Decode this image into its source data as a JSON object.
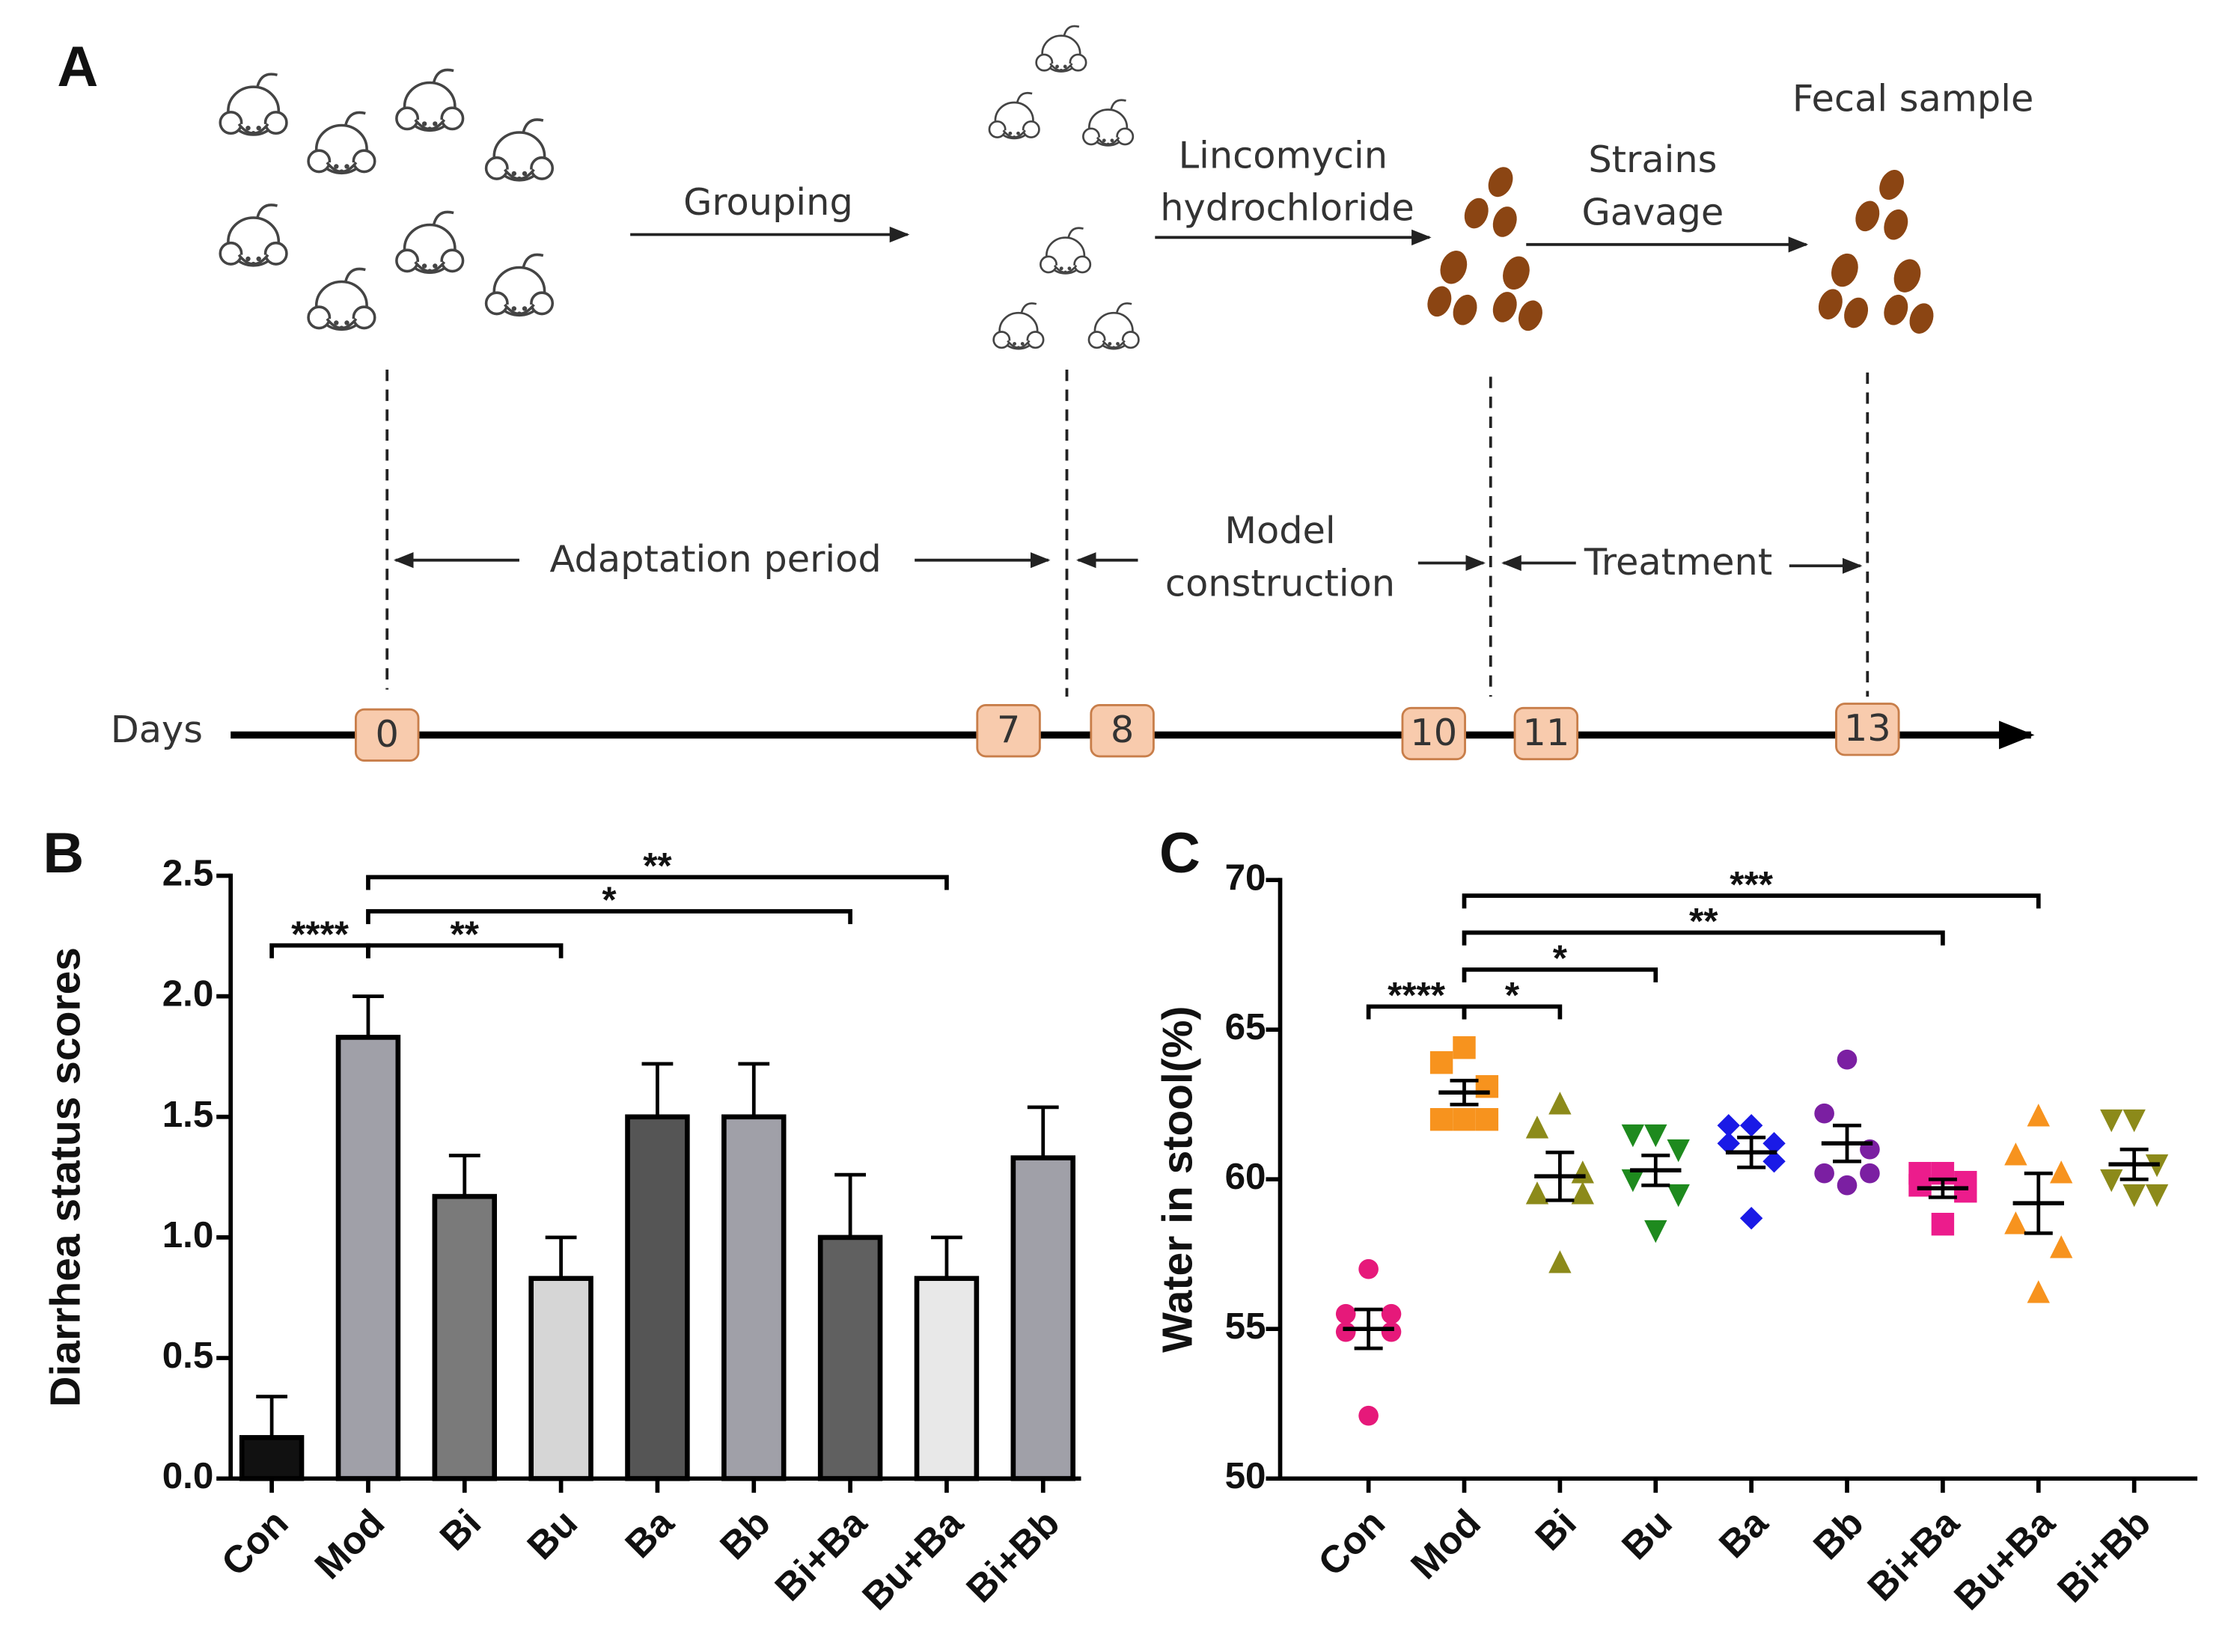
{
  "panel_a": {
    "label": "A",
    "grouping": "Grouping",
    "lincomycin": [
      "Lincomycin",
      "hydrochloride"
    ],
    "gavage": [
      "Strains",
      "Gavage"
    ],
    "fecal": "Fecal sample",
    "periods": [
      [
        "Adaptation period"
      ],
      [
        "Model",
        "construction"
      ],
      [
        "Treatment"
      ]
    ],
    "days_label": "Days",
    "days": [
      0,
      7,
      8,
      10,
      11,
      13
    ]
  },
  "chart_data": [
    {
      "type": "bar",
      "label": "B",
      "y_label": "Diarrhea status scores",
      "categories": [
        "Con",
        "Mod",
        "Bi",
        "Bu",
        "Ba",
        "Bb",
        "Bi+Ba",
        "Bu+Ba",
        "Bi+Bb"
      ],
      "values": [
        0.17,
        1.83,
        1.17,
        0.83,
        1.5,
        1.5,
        1.0,
        0.83,
        1.33
      ],
      "errors": [
        0.17,
        0.17,
        0.17,
        0.17,
        0.22,
        0.22,
        0.26,
        0.17,
        0.21
      ],
      "colors": [
        "#111111",
        "#a0a0a8",
        "#7a7a7a",
        "#d6d6d6",
        "#555555",
        "#a0a0a8",
        "#606060",
        "#e8e8e8",
        "#a0a0a8"
      ],
      "ylim": [
        0,
        2.5
      ],
      "yticks": [
        {
          "value": 0,
          "label": "0.0"
        },
        {
          "value": 0.5,
          "label": "0.5"
        },
        {
          "value": 1,
          "label": "1.0"
        },
        {
          "value": 1.5,
          "label": "1.5"
        },
        {
          "value": 2,
          "label": "2.0"
        },
        {
          "value": 2.5,
          "label": "2.5"
        }
      ],
      "comparisons": [
        {
          "groups": [
            "Con",
            "Mod"
          ],
          "label": "****"
        },
        {
          "groups": [
            "Mod",
            "Bu"
          ],
          "label": "**"
        },
        {
          "groups": [
            "Mod",
            "Bi+Ba"
          ],
          "label": "*"
        },
        {
          "groups": [
            "Mod",
            "Bu+Ba"
          ],
          "label": "**"
        }
      ]
    },
    {
      "type": "dotplot",
      "label": "C",
      "y_label": "Water in stool(%)",
      "series": [
        {
          "name": "Con",
          "color": "#e6197a",
          "marker": "circle",
          "values": [
            57.0,
            55.5,
            55.5,
            54.9,
            54.9,
            52.1
          ],
          "mean": 55.0,
          "sem": 0.65
        },
        {
          "name": "Mod",
          "color": "#f7931e",
          "marker": "square",
          "values": [
            64.4,
            63.9,
            63.1,
            62.0,
            62.0,
            62.0
          ],
          "mean": 62.9,
          "sem": 0.4
        },
        {
          "name": "Bi",
          "color": "#8c8a1a",
          "marker": "triangle-up",
          "values": [
            62.5,
            61.7,
            60.2,
            59.5,
            59.5,
            57.2
          ],
          "mean": 60.1,
          "sem": 0.8
        },
        {
          "name": "Bu",
          "color": "#1e8a1e",
          "marker": "triangle-down",
          "values": [
            61.5,
            61.5,
            61.0,
            60.0,
            59.5,
            58.3
          ],
          "mean": 60.3,
          "sem": 0.5
        },
        {
          "name": "Ba",
          "color": "#1a1ae6",
          "marker": "diamond",
          "values": [
            61.8,
            61.8,
            61.2,
            61.2,
            60.6,
            58.7
          ],
          "mean": 60.9,
          "sem": 0.5
        },
        {
          "name": "Bb",
          "color": "#7b1fa2",
          "marker": "circle",
          "values": [
            64.0,
            62.2,
            61.0,
            60.2,
            60.2,
            59.8
          ],
          "mean": 61.2,
          "sem": 0.6
        },
        {
          "name": "Bi+Ba",
          "color": "#ec1c8c",
          "marker": "square",
          "values": [
            60.2,
            60.2,
            59.9,
            59.8,
            59.6,
            58.5
          ],
          "mean": 59.7,
          "sem": 0.3
        },
        {
          "name": "Bu+Ba",
          "color": "#f7931e",
          "marker": "triangle-up",
          "values": [
            62.1,
            60.8,
            60.2,
            58.5,
            57.7,
            56.2
          ],
          "mean": 59.2,
          "sem": 1.0
        },
        {
          "name": "Bi+Bb",
          "color": "#8c8a1a",
          "marker": "triangle-down",
          "values": [
            62.0,
            62.0,
            60.5,
            60.0,
            59.5,
            59.5
          ],
          "mean": 60.5,
          "sem": 0.5
        }
      ],
      "ylim": [
        50,
        70
      ],
      "yticks": [
        50,
        55,
        60,
        65,
        70
      ],
      "comparisons": [
        {
          "groups": [
            "Con",
            "Mod"
          ],
          "label": "****"
        },
        {
          "groups": [
            "Mod",
            "Bi"
          ],
          "label": "*"
        },
        {
          "groups": [
            "Mod",
            "Bu"
          ],
          "label": "*"
        },
        {
          "groups": [
            "Mod",
            "Bi+Ba"
          ],
          "label": "**"
        },
        {
          "groups": [
            "Mod",
            "Bu+Ba"
          ],
          "label": "***"
        }
      ]
    }
  ]
}
